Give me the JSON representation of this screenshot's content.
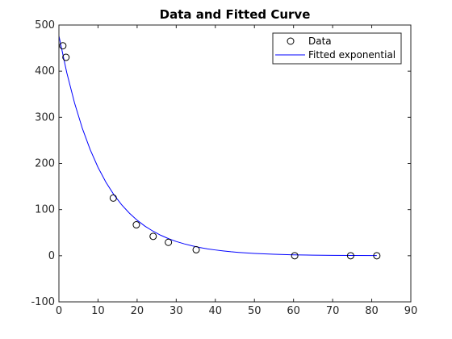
{
  "chart_data": {
    "type": "scatter",
    "title": "Data and Fitted Curve",
    "xlabel": "",
    "ylabel": "",
    "xlim": [
      0,
      90
    ],
    "ylim": [
      -100,
      500
    ],
    "xticks": [
      0,
      10,
      20,
      30,
      40,
      50,
      60,
      70,
      80,
      90
    ],
    "yticks": [
      -100,
      0,
      100,
      200,
      300,
      400,
      500
    ],
    "grid": false,
    "legend_position": "top-right",
    "series": [
      {
        "name": "Data",
        "kind": "markers",
        "marker": "circle",
        "color": "#000000",
        "x": [
          1.0,
          1.8,
          13.9,
          19.8,
          24.1,
          28.0,
          35.1,
          60.3,
          74.6,
          81.3
        ],
        "y": [
          455,
          430,
          125,
          67,
          42,
          29,
          13,
          0,
          0,
          0
        ]
      },
      {
        "name": "Fitted exponential",
        "kind": "line",
        "color": "#0000ff",
        "function": "y = 476.4 * exp(-0.0910 * x)",
        "x": [
          0,
          2,
          4,
          6,
          8,
          10,
          12,
          14,
          16,
          18,
          20,
          22,
          24,
          26,
          28,
          30,
          32,
          34,
          36,
          38,
          40,
          42,
          44,
          46,
          48,
          50,
          55,
          60,
          65,
          70,
          75,
          81.3
        ],
        "y": [
          476.4,
          397.0,
          330.9,
          275.7,
          229.8,
          191.5,
          159.6,
          133.0,
          110.8,
          92.4,
          77.0,
          64.1,
          53.5,
          44.5,
          37.1,
          30.9,
          25.8,
          21.5,
          17.9,
          14.9,
          12.5,
          10.4,
          8.6,
          7.2,
          6.0,
          5.0,
          3.2,
          2.0,
          1.3,
          0.8,
          0.5,
          0.3
        ]
      }
    ]
  }
}
